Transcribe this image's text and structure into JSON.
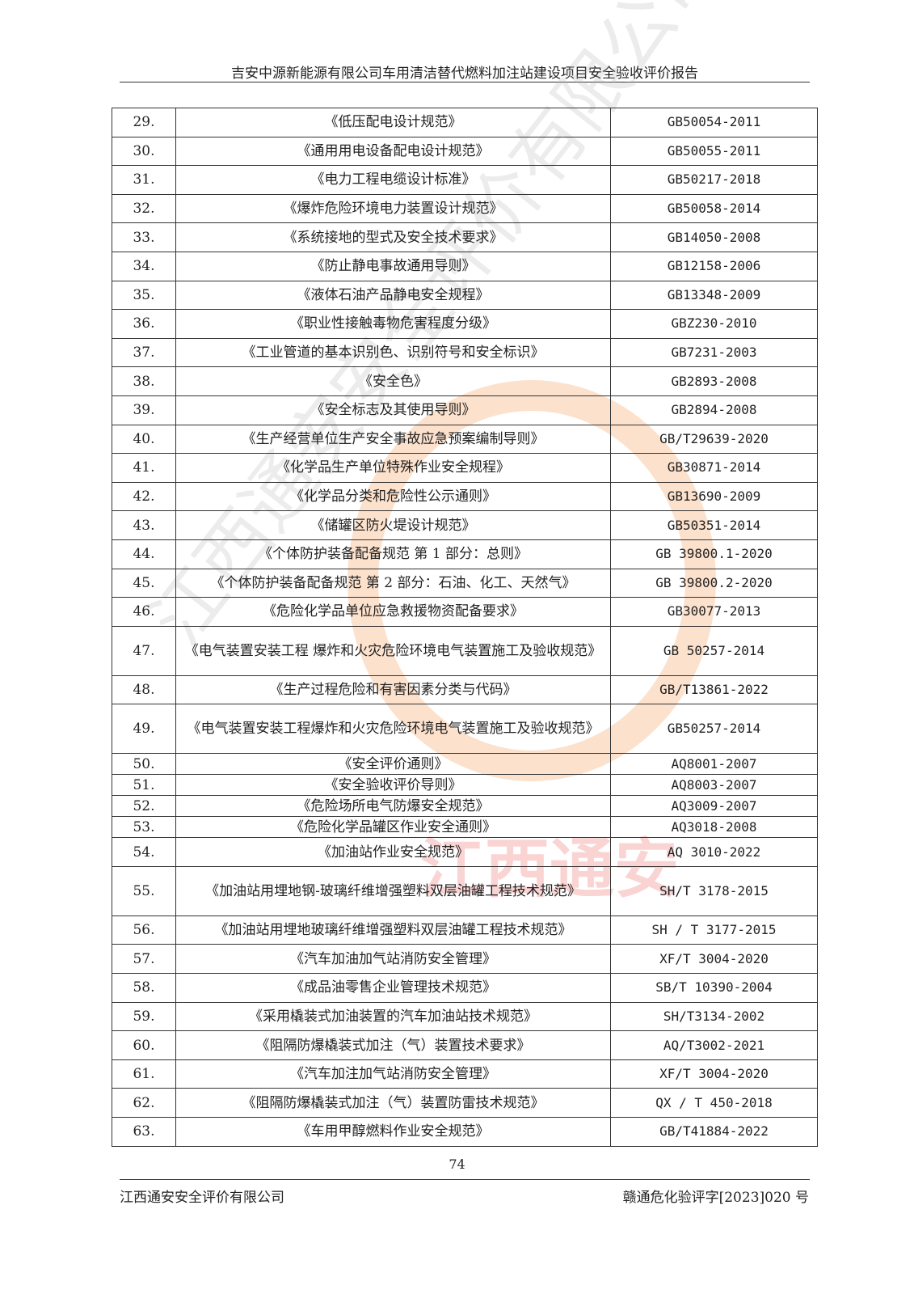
{
  "header": {
    "title": "吉安中源新能源有限公司车用清洁替代燃料加注站建设项目安全验收评价报告"
  },
  "rows": [
    {
      "no": "29.",
      "name": "《低压配电设计规范》",
      "code": "GB50054-2011",
      "h": "r"
    },
    {
      "no": "30.",
      "name": "《通用用电设备配电设计规范》",
      "code": "GB50055-2011",
      "h": "r"
    },
    {
      "no": "31.",
      "name": "《电力工程电缆设计标准》",
      "code": "GB50217-2018",
      "h": "r"
    },
    {
      "no": "32.",
      "name": "《爆炸危险环境电力装置设计规范》",
      "code": "GB50058-2014",
      "h": "r"
    },
    {
      "no": "33.",
      "name": "《系统接地的型式及安全技术要求》",
      "code": "GB14050-2008",
      "h": "r"
    },
    {
      "no": "34.",
      "name": "《防止静电事故通用导则》",
      "code": "GB12158-2006",
      "h": "r"
    },
    {
      "no": "35.",
      "name": "《液体石油产品静电安全规程》",
      "code": "GB13348-2009",
      "h": "r"
    },
    {
      "no": "36.",
      "name": "《职业性接触毒物危害程度分级》",
      "code": "GBZ230-2010",
      "h": "r"
    },
    {
      "no": "37.",
      "name": "《工业管道的基本识别色、识别符号和安全标识》",
      "code": "GB7231-2003",
      "h": "r"
    },
    {
      "no": "38.",
      "name": "《安全色》",
      "code": "GB2893-2008",
      "h": "r"
    },
    {
      "no": "39.",
      "name": "《安全标志及其使用导则》",
      "code": "GB2894-2008",
      "h": "r"
    },
    {
      "no": "40.",
      "name": "《生产经营单位生产安全事故应急预案编制导则》",
      "code": "GB/T29639-2020",
      "h": "r"
    },
    {
      "no": "41.",
      "name": "《化学品生产单位特殊作业安全规程》",
      "code": "GB30871-2014",
      "h": "r"
    },
    {
      "no": "42.",
      "name": "《化学品分类和危险性公示通则》",
      "code": "GB13690-2009",
      "h": "r"
    },
    {
      "no": "43.",
      "name": "《储罐区防火堤设计规范》",
      "code": "GB50351-2014",
      "h": "r"
    },
    {
      "no": "44.",
      "name": "《个体防护装备配备规范 第 1 部分：总则》",
      "code": "GB 39800.1-2020",
      "h": "r"
    },
    {
      "no": "45.",
      "name": "《个体防护装备配备规范 第 2 部分：石油、化工、天然气》",
      "code": "GB 39800.2-2020",
      "h": "r"
    },
    {
      "no": "46.",
      "name": "《危险化学品单位应急救援物资配备要求》",
      "code": "GB30077-2013",
      "h": "r"
    },
    {
      "no": "47.",
      "name": "《电气装置安装工程 爆炸和火灾危险环境电气装置施工及验收规范》",
      "code": "GB 50257-2014",
      "h": "t"
    },
    {
      "no": "48.",
      "name": "《生产过程危险和有害因素分类与代码》",
      "code": "GB/T13861-2022",
      "h": "r"
    },
    {
      "no": "49.",
      "name": "《电气装置安装工程爆炸和火灾危险环境电气装置施工及验收规范》",
      "code": "GB50257-2014",
      "h": "t"
    },
    {
      "no": "50.",
      "name": "《安全评价通则》",
      "code": "AQ8001-2007",
      "h": "s"
    },
    {
      "no": "51.",
      "name": "《安全验收评价导则》",
      "code": "AQ8003-2007",
      "h": "s"
    },
    {
      "no": "52.",
      "name": "《危险场所电气防爆安全规范》",
      "code": "AQ3009-2007",
      "h": "s"
    },
    {
      "no": "53.",
      "name": "《危险化学品罐区作业安全通则》",
      "code": "AQ3018-2008",
      "h": "s"
    },
    {
      "no": "54.",
      "name": "《加油站作业安全规范》",
      "code": "AQ 3010-2022",
      "h": "r"
    },
    {
      "no": "55.",
      "name": "《加油站用埋地钢-玻璃纤维增强塑料双层油罐工程技术规范》",
      "code": "SH/T 3178-2015",
      "h": "t"
    },
    {
      "no": "56.",
      "name": "《加油站用埋地玻璃纤维增强塑料双层油罐工程技术规范》",
      "code": "SH / T 3177-2015",
      "h": "r"
    },
    {
      "no": "57.",
      "name": "《汽车加油加气站消防安全管理》",
      "code": "XF/T 3004-2020",
      "h": "r"
    },
    {
      "no": "58.",
      "name": "《成品油零售企业管理技术规范》",
      "code": "SB/T 10390-2004",
      "h": "r"
    },
    {
      "no": "59.",
      "name": "《采用橇装式加油装置的汽车加油站技术规范》",
      "code": "SH/T3134-2002",
      "h": "r"
    },
    {
      "no": "60.",
      "name": "《阻隔防爆橇装式加注（气）装置技术要求》",
      "code": "AQ/T3002-2021",
      "h": "r"
    },
    {
      "no": "61.",
      "name": "《汽车加注加气站消防安全管理》",
      "code": "XF/T 3004-2020",
      "h": "r"
    },
    {
      "no": "62.",
      "name": "《阻隔防爆橇装式加注（气）装置防雷技术规范》",
      "code": "QX / T 450-2018",
      "h": "r"
    },
    {
      "no": "63.",
      "name": "《车用甲醇燃料作业安全规范》",
      "code": "GB/T41884-2022",
      "h": "r"
    }
  ],
  "page_number": "74",
  "footer": {
    "company": "江西通安安全评价有限公司",
    "doc_no": "赣通危化验评字[2023]020 号"
  },
  "watermark": {
    "text": "江西通安",
    "diag_text": "江西通安安全评价有限公司"
  }
}
